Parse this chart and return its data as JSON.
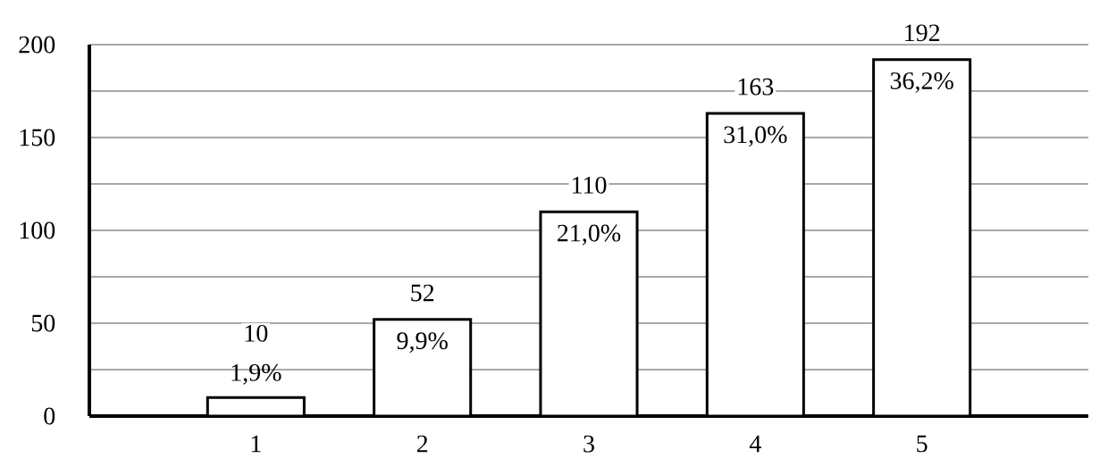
{
  "chart_data": {
    "type": "bar",
    "categories": [
      "1",
      "2",
      "3",
      "4",
      "5"
    ],
    "values": [
      10,
      52,
      110,
      163,
      192
    ],
    "value_labels": [
      "10",
      "52",
      "110",
      "163",
      "192"
    ],
    "annotations": [
      {
        "text": "1,9%",
        "x": "1",
        "y": 10
      },
      {
        "text": "9,9%",
        "x": "2",
        "y": 52
      },
      {
        "text": "21,0%",
        "x": "3",
        "y": 110
      },
      {
        "text": "31,0%",
        "x": "4",
        "y": 163
      },
      {
        "text": "36,2%",
        "x": "5",
        "y": 192
      }
    ],
    "color": "#ffffff",
    "ylim": [
      0,
      200
    ],
    "yticks": [
      0,
      {
        "value": 25,
        "label": null
      },
      50,
      {
        "value": 75,
        "label": null
      },
      100,
      {
        "value": 125,
        "label": null
      },
      150,
      {
        "value": 175,
        "label": null
      },
      200
    ],
    "grid": "y"
  }
}
